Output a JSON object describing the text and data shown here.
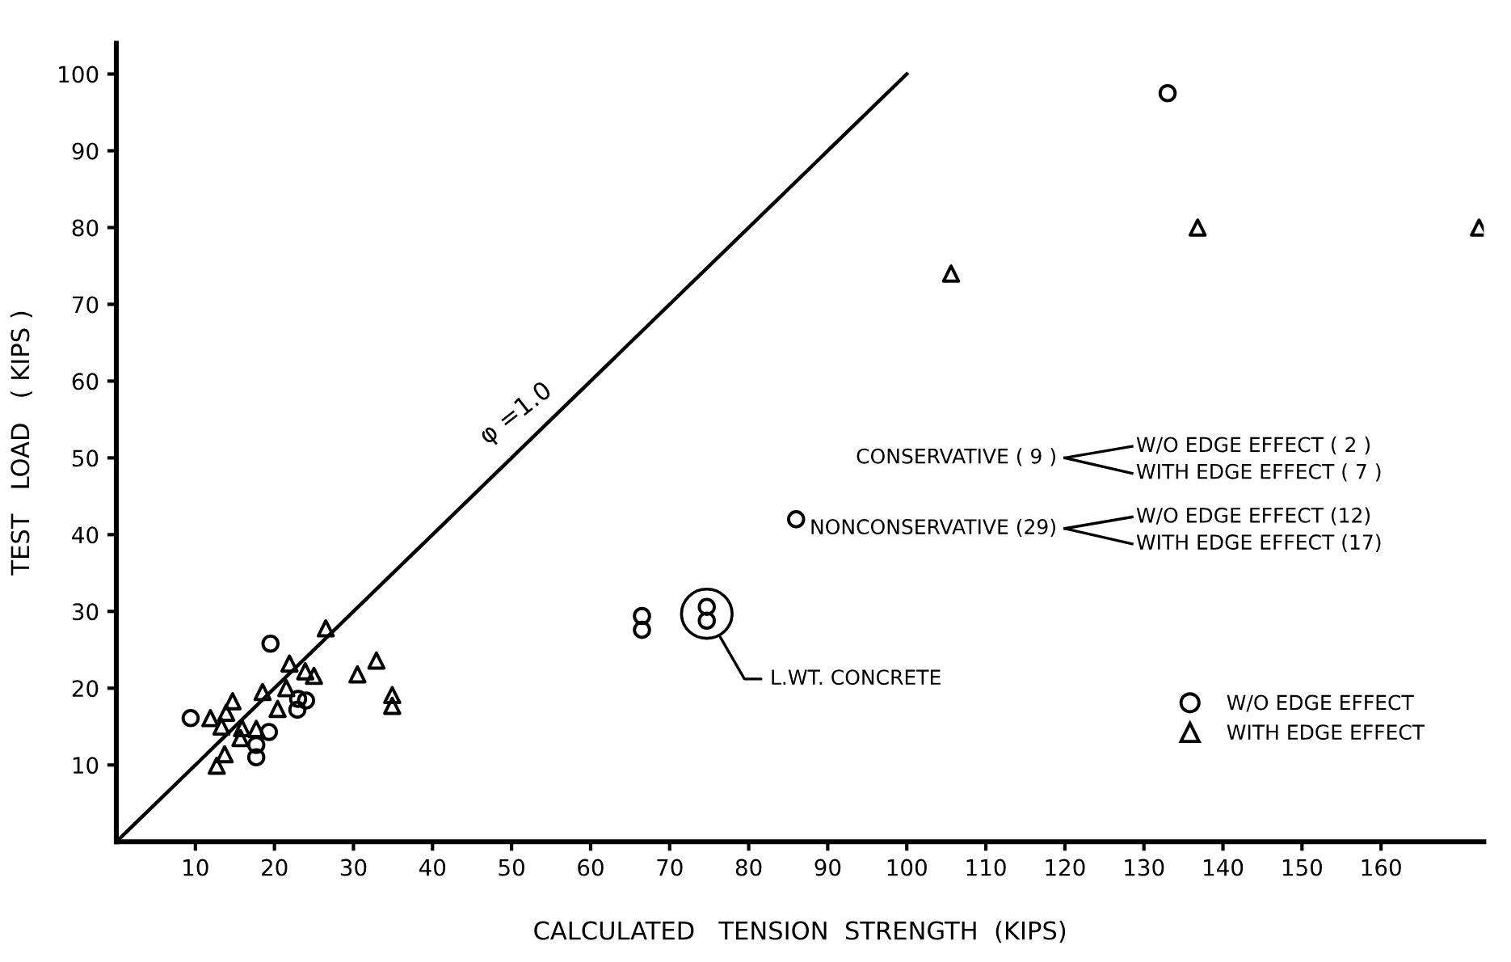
{
  "chart_data": {
    "type": "scatter",
    "xlabel": "CALCULATED   TENSION  STRENGTH  (KIPS)",
    "ylabel": "TEST   LOAD   ( KIPS )",
    "xlim": [
      0,
      173
    ],
    "ylim": [
      0,
      104
    ],
    "xticks": [
      10,
      20,
      30,
      40,
      50,
      60,
      70,
      80,
      90,
      100,
      110,
      120,
      130,
      140,
      150,
      160
    ],
    "yticks": [
      10,
      20,
      30,
      40,
      50,
      60,
      70,
      80,
      90,
      100
    ],
    "grid": false,
    "legend": "bottom right",
    "series": [
      {
        "name": "W/O EDGE EFFECT",
        "color": "#000000",
        "marker": "circle",
        "x": [
          9.4,
          19.5,
          23.0,
          24.0,
          22.9,
          19.3,
          17.7,
          17.7,
          86.0,
          133.0
        ],
        "values": [
          16.1,
          25.8,
          18.6,
          18.4,
          17.2,
          14.3,
          12.6,
          11.0,
          42.0,
          97.5
        ]
      },
      {
        "name": "WITH EDGE EFFECT",
        "color": "#000000",
        "marker": "triangle",
        "x": [
          26.5,
          21.9,
          23.9,
          25.0,
          32.9,
          30.5,
          34.9,
          34.9,
          18.5,
          21.5,
          20.4,
          14.7,
          13.9,
          11.9,
          13.3,
          15.9,
          17.7,
          15.7,
          13.7,
          12.7,
          105.6,
          136.8,
          172.4
        ],
        "values": [
          27.8,
          23.2,
          22.2,
          21.6,
          23.6,
          21.8,
          19.1,
          17.7,
          19.5,
          20.0,
          17.3,
          18.3,
          16.8,
          16.1,
          15.0,
          14.8,
          14.7,
          13.5,
          11.4,
          9.9,
          74.0,
          80.0,
          80.0
        ]
      },
      {
        "color": "#000000",
        "marker": "circle",
        "x": [
          66.5,
          66.5,
          74.7,
          74.7
        ],
        "values": [
          27.6,
          29.4,
          28.8,
          30.6
        ]
      },
      {
        "name": "φ =1.0",
        "type": "line",
        "color": "#000000",
        "line_style": "solid",
        "marker": "none",
        "x": [
          0,
          100
        ],
        "values": [
          0,
          100
        ]
      }
    ],
    "annotations": [
      "L.WT. CONCRETE",
      "CONSERVATIVE ( 9 )",
      "W/O EDGE EFFECT ( 2 )",
      "WITH EDGE EFFECT ( 7 )",
      "NONCONSERVATIVE (29)",
      "W/O EDGE EFFECT (12)",
      "WITH EDGE EFFECT (17)"
    ]
  }
}
